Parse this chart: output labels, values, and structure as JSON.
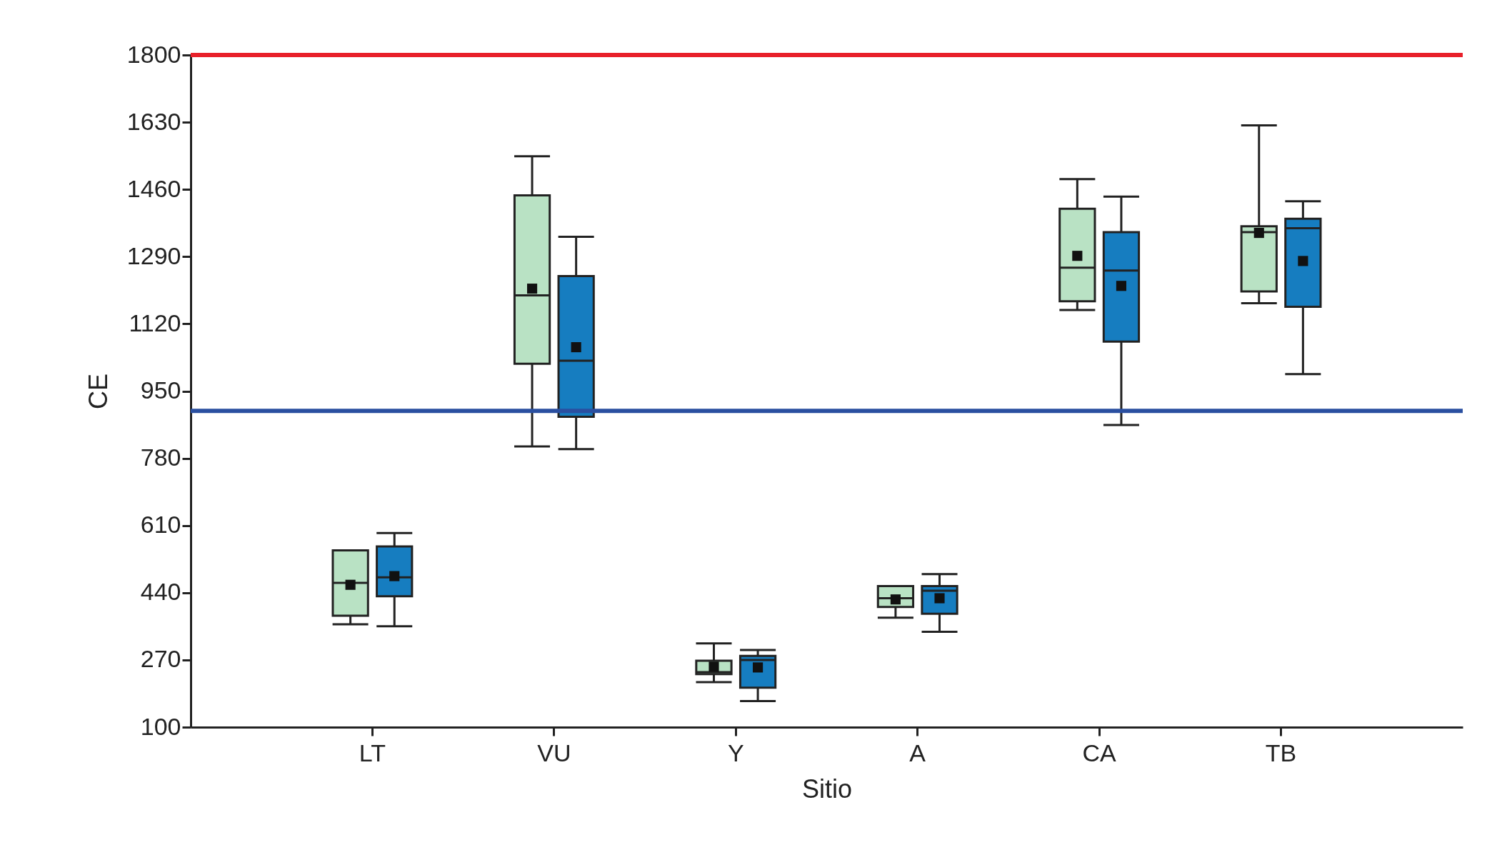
{
  "chart_data": {
    "type": "box",
    "xlabel": "Sitio",
    "ylabel": "CE",
    "categories": [
      "LT",
      "VU",
      "Y",
      "A",
      "CA",
      "TB"
    ],
    "ylim": [
      100,
      1800
    ],
    "yticks": [
      100,
      270,
      440,
      610,
      780,
      950,
      1120,
      1290,
      1460,
      1630,
      1800
    ],
    "grid": false,
    "legend": false,
    "series": [
      {
        "color": "#b9e2c4",
        "boxes": [
          {
            "low": 360,
            "q1": 382,
            "median": 465,
            "q3": 547,
            "high": 547,
            "mean": 460
          },
          {
            "low": 810,
            "q1": 1019,
            "median": 1192,
            "q3": 1445,
            "high": 1544,
            "mean": 1209
          },
          {
            "low": 214,
            "q1": 234,
            "median": 239,
            "q3": 268,
            "high": 312,
            "mean": 253
          },
          {
            "low": 377,
            "q1": 404,
            "median": 426,
            "q3": 457,
            "high": 457,
            "mean": 423
          },
          {
            "low": 1155,
            "q1": 1177,
            "median": 1262,
            "q3": 1411,
            "high": 1486,
            "mean": 1292
          },
          {
            "low": 1172,
            "q1": 1202,
            "median": 1352,
            "q3": 1367,
            "high": 1622,
            "mean": 1350
          }
        ]
      },
      {
        "color": "#167dc0",
        "boxes": [
          {
            "low": 355,
            "q1": 431,
            "median": 479,
            "q3": 557,
            "high": 591,
            "mean": 482
          },
          {
            "low": 803,
            "q1": 885,
            "median": 1027,
            "q3": 1241,
            "high": 1340,
            "mean": 1061
          },
          {
            "low": 166,
            "q1": 200,
            "median": 270,
            "q3": 280,
            "high": 295,
            "mean": 251
          },
          {
            "low": 341,
            "q1": 387,
            "median": 445,
            "q3": 457,
            "high": 487,
            "mean": 426
          },
          {
            "low": 864,
            "q1": 1075,
            "median": 1255,
            "q3": 1352,
            "high": 1442,
            "mean": 1216
          },
          {
            "low": 993,
            "q1": 1163,
            "median": 1362,
            "q3": 1386,
            "high": 1430,
            "mean": 1279
          }
        ]
      }
    ],
    "ref_lines": [
      {
        "axis": "y",
        "value": 1800,
        "color": "#e8202a"
      },
      {
        "axis": "y",
        "value": 900,
        "color": "#2a4fa0"
      }
    ]
  }
}
